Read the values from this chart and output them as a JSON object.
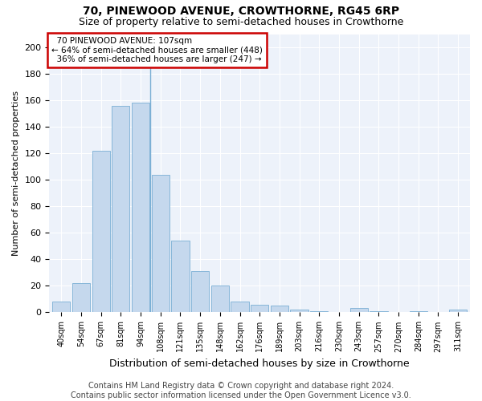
{
  "title": "70, PINEWOOD AVENUE, CROWTHORNE, RG45 6RP",
  "subtitle": "Size of property relative to semi-detached houses in Crowthorne",
  "xlabel": "Distribution of semi-detached houses by size in Crowthorne",
  "ylabel": "Number of semi-detached properties",
  "categories": [
    "40sqm",
    "54sqm",
    "67sqm",
    "81sqm",
    "94sqm",
    "108sqm",
    "121sqm",
    "135sqm",
    "148sqm",
    "162sqm",
    "176sqm",
    "189sqm",
    "203sqm",
    "216sqm",
    "230sqm",
    "243sqm",
    "257sqm",
    "270sqm",
    "284sqm",
    "297sqm",
    "311sqm"
  ],
  "values": [
    8,
    22,
    122,
    156,
    158,
    104,
    54,
    31,
    20,
    8,
    6,
    5,
    2,
    1,
    0,
    3,
    1,
    0,
    1,
    0,
    2
  ],
  "bar_color": "#c5d8ed",
  "bar_edge_color": "#7aafd4",
  "property_label": "70 PINEWOOD AVENUE: 107sqm",
  "smaller_pct": 64,
  "smaller_count": 448,
  "larger_pct": 36,
  "larger_count": 247,
  "annotation_box_color": "#ffffff",
  "annotation_box_edge_color": "#cc0000",
  "ylim": [
    0,
    210
  ],
  "yticks": [
    0,
    20,
    40,
    60,
    80,
    100,
    120,
    140,
    160,
    180,
    200
  ],
  "background_color": "#edf2fa",
  "grid_color": "#ffffff",
  "footer": "Contains HM Land Registry data © Crown copyright and database right 2024.\nContains public sector information licensed under the Open Government Licence v3.0.",
  "title_fontsize": 10,
  "subtitle_fontsize": 9,
  "xlabel_fontsize": 9,
  "ylabel_fontsize": 8,
  "footer_fontsize": 7,
  "vline_bar_index": 5
}
